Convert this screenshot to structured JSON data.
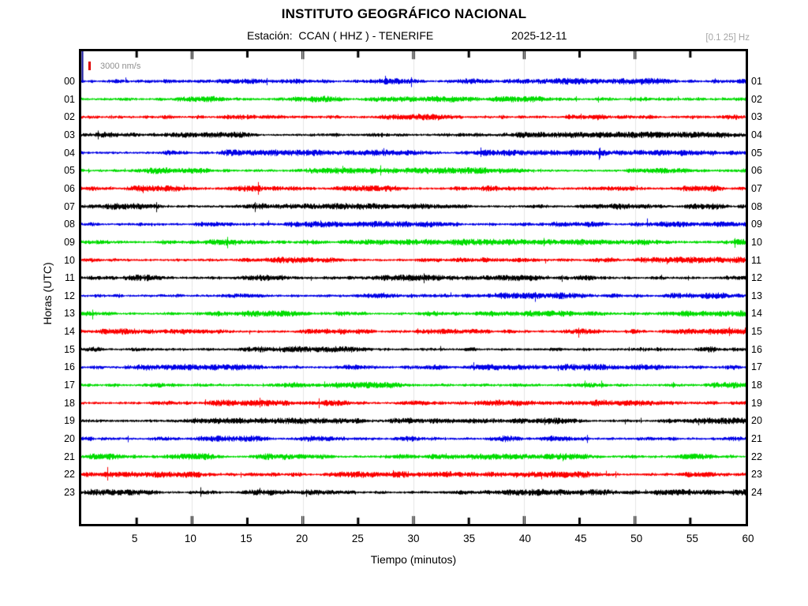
{
  "header": {
    "title": "INSTITUTO GEOGRÁFICO NACIONAL",
    "station_label": "Estación:  CCAN ( HHZ ) - TENERIFE",
    "date": "2025-12-11",
    "filter_band": "[0.1 25] Hz"
  },
  "legend": {
    "scale_label": "3000 nm/s",
    "scale_bar_color": "#e00000"
  },
  "axes": {
    "xlabel": "Tiempo (minutos)",
    "ylabel": "Horas (UTC)",
    "x_range_minutes": [
      0,
      60
    ],
    "x_ticks": [
      5,
      10,
      15,
      20,
      25,
      30,
      35,
      40,
      45,
      50,
      55,
      60
    ],
    "gridlines_minutes": [
      10,
      20,
      30,
      40,
      50
    ],
    "gridline_color": "#e4e4e4"
  },
  "chart_data": {
    "type": "line",
    "subtype": "helicorder-seismogram",
    "title": "INSTITUTO GEOGRÁFICO NACIONAL — Estación: CCAN ( HHZ ) - TENERIFE — 2025-12-11",
    "xlabel": "Tiempo (minutos)",
    "ylabel": "Horas (UTC)",
    "x_range_minutes": [
      0,
      60
    ],
    "amplitude_scale": "3000 nm/s",
    "frequency_band_hz": "[0.1 25]",
    "description": "24 hourly traces of continuous background seismic noise; low uniform amplitude, no visible earthquake events; color cycle blue-green-red-black",
    "palette": {
      "blue": "#0000e6",
      "green": "#00dc00",
      "red": "#fb0000",
      "black": "#000000"
    },
    "rows": [
      {
        "hour_utc": "00",
        "right_label": "01",
        "color": "blue"
      },
      {
        "hour_utc": "01",
        "right_label": "02",
        "color": "green"
      },
      {
        "hour_utc": "02",
        "right_label": "03",
        "color": "red"
      },
      {
        "hour_utc": "03",
        "right_label": "04",
        "color": "black"
      },
      {
        "hour_utc": "04",
        "right_label": "05",
        "color": "blue"
      },
      {
        "hour_utc": "05",
        "right_label": "06",
        "color": "green"
      },
      {
        "hour_utc": "06",
        "right_label": "07",
        "color": "red"
      },
      {
        "hour_utc": "07",
        "right_label": "08",
        "color": "black"
      },
      {
        "hour_utc": "08",
        "right_label": "09",
        "color": "blue"
      },
      {
        "hour_utc": "09",
        "right_label": "10",
        "color": "green"
      },
      {
        "hour_utc": "10",
        "right_label": "11",
        "color": "red"
      },
      {
        "hour_utc": "11",
        "right_label": "12",
        "color": "black"
      },
      {
        "hour_utc": "12",
        "right_label": "13",
        "color": "blue"
      },
      {
        "hour_utc": "13",
        "right_label": "14",
        "color": "green"
      },
      {
        "hour_utc": "14",
        "right_label": "15",
        "color": "red"
      },
      {
        "hour_utc": "15",
        "right_label": "16",
        "color": "black"
      },
      {
        "hour_utc": "16",
        "right_label": "17",
        "color": "blue"
      },
      {
        "hour_utc": "17",
        "right_label": "18",
        "color": "green"
      },
      {
        "hour_utc": "18",
        "right_label": "19",
        "color": "red"
      },
      {
        "hour_utc": "19",
        "right_label": "20",
        "color": "black"
      },
      {
        "hour_utc": "20",
        "right_label": "21",
        "color": "blue"
      },
      {
        "hour_utc": "21",
        "right_label": "22",
        "color": "green"
      },
      {
        "hour_utc": "22",
        "right_label": "23",
        "color": "red"
      },
      {
        "hour_utc": "23",
        "right_label": "24",
        "color": "black"
      }
    ]
  }
}
